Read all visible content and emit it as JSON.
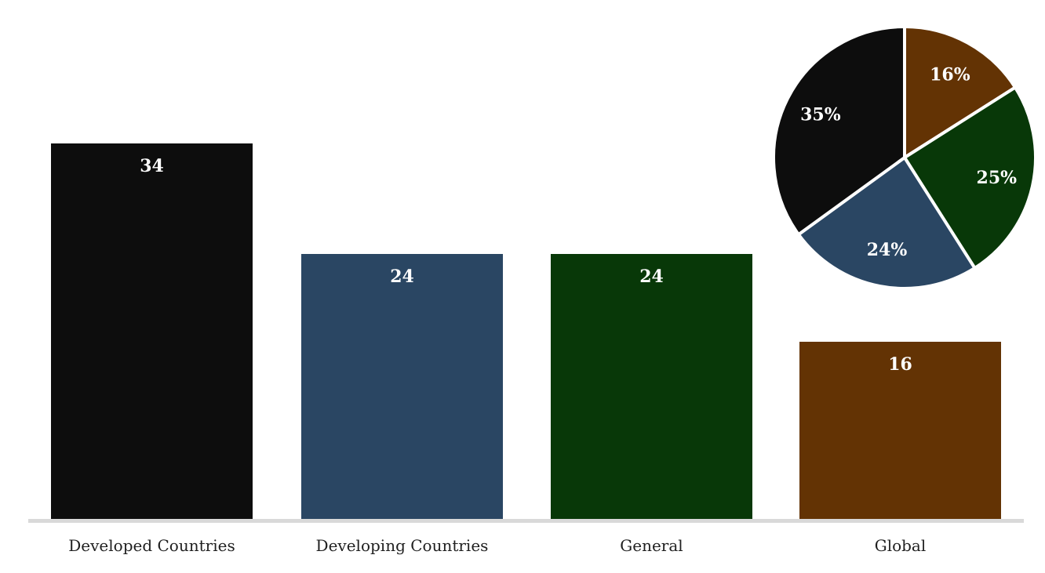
{
  "page": {
    "background": "#ffffff"
  },
  "chart_data": [
    {
      "type": "bar",
      "title": "",
      "xlabel": "",
      "ylabel": "",
      "categories": [
        "Developed Countries",
        "Developing Countries",
        "General",
        "Global"
      ],
      "values": [
        34,
        24,
        24,
        16
      ],
      "data_labels": [
        "34",
        "24",
        "24",
        "16"
      ],
      "colors": [
        "#0d0d0d",
        "#2a4663",
        "#083808",
        "#633304"
      ],
      "ylim": [
        0,
        45
      ],
      "grid": "off",
      "legend": "none",
      "axis_line_color": "#d9d9d9",
      "data_label_color": "#ffffff",
      "category_label_color": "#1f1f1f"
    },
    {
      "type": "pie",
      "title": "",
      "start_angle_deg": 0,
      "direction": "clockwise",
      "slices": [
        {
          "label": "16%",
          "value": 16,
          "color": "#633304"
        },
        {
          "label": "25%",
          "value": 25,
          "color": "#083808"
        },
        {
          "label": "24%",
          "value": 24,
          "color": "#2a4663"
        },
        {
          "label": "35%",
          "value": 35,
          "color": "#0d0d0d"
        }
      ],
      "separator_color": "#ffffff",
      "label_color": "#ffffff",
      "legend": "none"
    }
  ]
}
